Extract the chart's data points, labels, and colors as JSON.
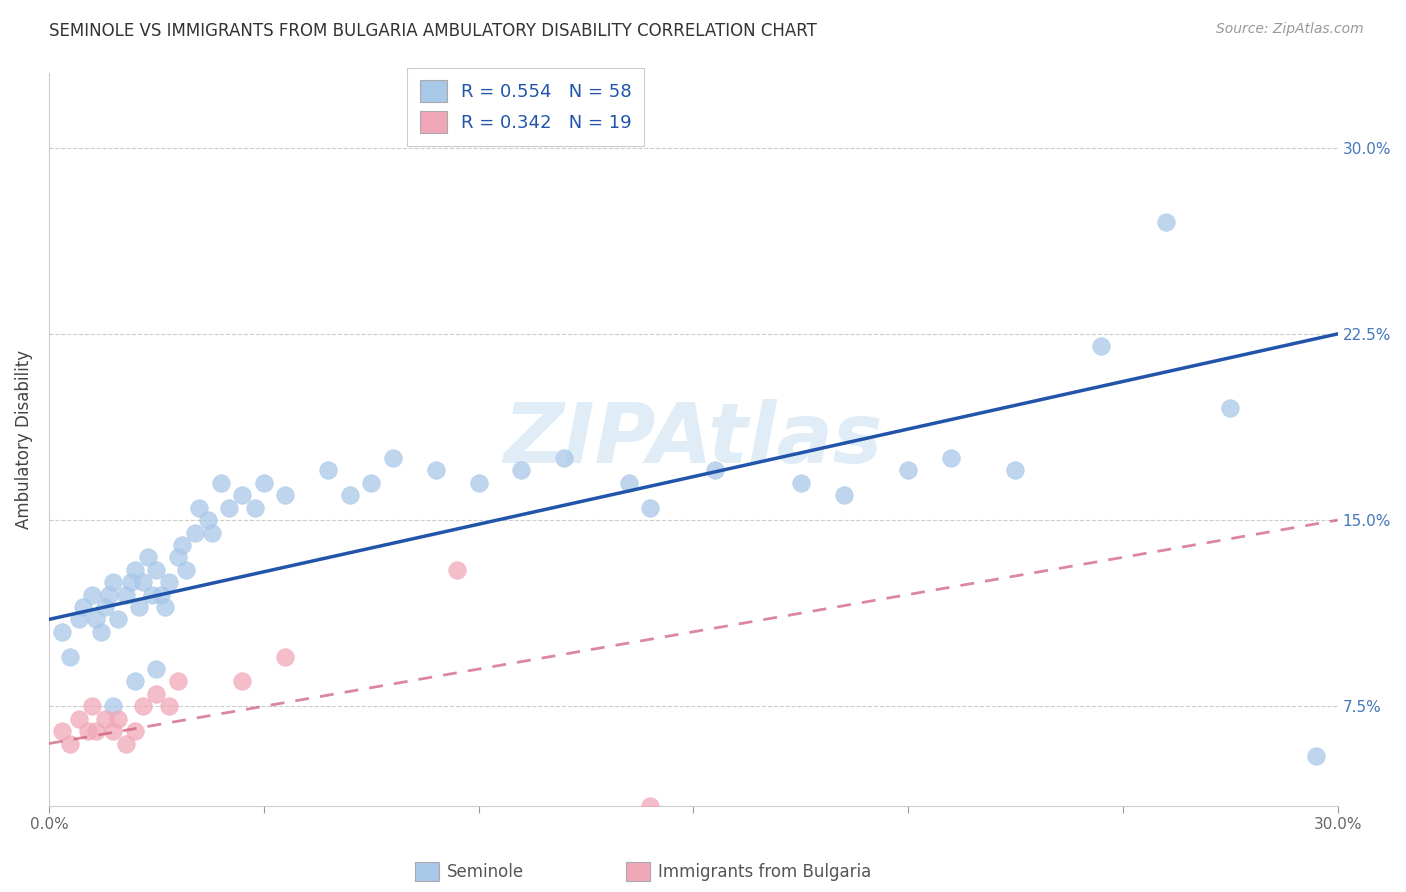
{
  "title": "SEMINOLE VS IMMIGRANTS FROM BULGARIA AMBULATORY DISABILITY CORRELATION CHART",
  "source": "Source: ZipAtlas.com",
  "ylabel": "Ambulatory Disability",
  "xmin": 0.0,
  "xmax": 30.0,
  "ymin": 3.5,
  "ymax": 33.0,
  "yticks": [
    7.5,
    15.0,
    22.5,
    30.0
  ],
  "ytick_labels": [
    "7.5%",
    "15.0%",
    "22.5%",
    "30.0%"
  ],
  "seminole_R": 0.554,
  "seminole_N": 58,
  "bulgaria_R": 0.342,
  "bulgaria_N": 19,
  "seminole_color": "#a8c8e8",
  "seminole_line_color": "#2255aa",
  "bulgaria_color": "#f0a8b8",
  "bulgaria_line_color": "#cc5577",
  "watermark": "ZIPAtlas",
  "background_color": "#ffffff",
  "seminole_scatter_x": [
    0.3,
    0.5,
    0.7,
    0.8,
    1.0,
    1.1,
    1.2,
    1.3,
    1.4,
    1.5,
    1.6,
    1.8,
    1.9,
    2.0,
    2.1,
    2.2,
    2.3,
    2.4,
    2.5,
    2.6,
    2.7,
    2.8,
    3.0,
    3.1,
    3.2,
    3.4,
    3.5,
    3.7,
    3.8,
    4.0,
    4.2,
    4.5,
    4.8,
    5.0,
    5.5,
    6.5,
    7.0,
    7.5,
    8.0,
    9.0,
    10.0,
    11.0,
    12.0,
    13.5,
    14.0,
    15.5,
    17.5,
    18.5,
    20.0,
    21.0,
    22.5,
    24.5,
    26.0,
    27.5,
    29.5,
    1.5,
    2.0,
    2.5
  ],
  "seminole_scatter_y": [
    10.5,
    9.5,
    11.0,
    11.5,
    12.0,
    11.0,
    10.5,
    11.5,
    12.0,
    12.5,
    11.0,
    12.0,
    12.5,
    13.0,
    11.5,
    12.5,
    13.5,
    12.0,
    13.0,
    12.0,
    11.5,
    12.5,
    13.5,
    14.0,
    13.0,
    14.5,
    15.5,
    15.0,
    14.5,
    16.5,
    15.5,
    16.0,
    15.5,
    16.5,
    16.0,
    17.0,
    16.0,
    16.5,
    17.5,
    17.0,
    16.5,
    17.0,
    17.5,
    16.5,
    15.5,
    17.0,
    16.5,
    16.0,
    17.0,
    17.5,
    17.0,
    22.0,
    27.0,
    19.5,
    5.5,
    7.5,
    8.5,
    9.0
  ],
  "bulgaria_scatter_x": [
    0.3,
    0.5,
    0.7,
    0.9,
    1.0,
    1.1,
    1.3,
    1.5,
    1.6,
    1.8,
    2.0,
    2.2,
    2.5,
    2.8,
    3.0,
    4.5,
    5.5,
    9.5,
    14.0
  ],
  "bulgaria_scatter_y": [
    6.5,
    6.0,
    7.0,
    6.5,
    7.5,
    6.5,
    7.0,
    6.5,
    7.0,
    6.0,
    6.5,
    7.5,
    8.0,
    7.5,
    8.5,
    8.5,
    9.5,
    13.0,
    3.5
  ]
}
